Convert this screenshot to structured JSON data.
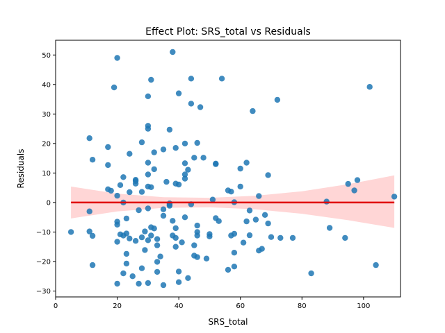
{
  "chart_data": {
    "type": "scatter",
    "title": "Effect Plot: SRS_total vs Residuals",
    "xlabel": "SRS_total",
    "ylabel": "Residuals",
    "xlim": [
      0,
      112
    ],
    "ylim": [
      -32,
      55
    ],
    "xticks": [
      0,
      20,
      40,
      60,
      80,
      100
    ],
    "yticks": [
      -30,
      -20,
      -10,
      0,
      10,
      20,
      30,
      40,
      50
    ],
    "grid": false,
    "colors": {
      "points": "#1f77b4",
      "line": "#e00000",
      "band": "#ff9999"
    },
    "regression_line": {
      "x": [
        5,
        110
      ],
      "y": [
        0,
        0
      ]
    },
    "confidence_band": {
      "x": [
        5,
        20,
        35,
        50,
        65,
        80,
        95,
        110
      ],
      "upper": [
        5.4,
        3.0,
        1.8,
        1.6,
        2.3,
        3.8,
        6.2,
        9.2
      ],
      "lower": [
        -5.4,
        -3.0,
        -1.8,
        -1.6,
        -2.3,
        -3.8,
        -6.0,
        -8.6
      ]
    },
    "points": [
      [
        5,
        -10
      ],
      [
        11,
        21.8
      ],
      [
        11,
        -3
      ],
      [
        11,
        -9.8
      ],
      [
        12,
        14.5
      ],
      [
        12,
        -11.3
      ],
      [
        12,
        -21.2
      ],
      [
        17,
        18.8
      ],
      [
        17,
        12.7
      ],
      [
        17,
        4.5
      ],
      [
        18,
        4
      ],
      [
        19,
        39
      ],
      [
        20,
        49
      ],
      [
        20,
        2.3
      ],
      [
        20,
        -6.5
      ],
      [
        20,
        -7.5
      ],
      [
        20,
        -13.3
      ],
      [
        20,
        -27.5
      ],
      [
        21,
        5.9
      ],
      [
        21,
        -10.8
      ],
      [
        22,
        8.6
      ],
      [
        22,
        0
      ],
      [
        22,
        -11.2
      ],
      [
        22,
        -24
      ],
      [
        23,
        -5.4
      ],
      [
        23,
        -10.5
      ],
      [
        23,
        -17.4
      ],
      [
        23,
        -20.7
      ],
      [
        24,
        16.5
      ],
      [
        24,
        3.5
      ],
      [
        24,
        -12.2
      ],
      [
        25,
        -25
      ],
      [
        26,
        7.7
      ],
      [
        26,
        7.3
      ],
      [
        26,
        6.4
      ],
      [
        26,
        -13
      ],
      [
        27,
        -2.6
      ],
      [
        27,
        -27.5
      ],
      [
        28,
        20.4
      ],
      [
        28,
        3.6
      ],
      [
        28,
        -11.8
      ],
      [
        28,
        -22.3
      ],
      [
        29,
        -9.8
      ],
      [
        29,
        -16.1
      ],
      [
        30,
        36
      ],
      [
        30,
        26
      ],
      [
        30,
        25
      ],
      [
        30,
        13.5
      ],
      [
        30,
        9.5
      ],
      [
        30,
        5.4
      ],
      [
        30,
        -2
      ],
      [
        30,
        -12.8
      ],
      [
        30,
        -27.3
      ],
      [
        31,
        41.6
      ],
      [
        31,
        5.2
      ],
      [
        31,
        -8.4
      ],
      [
        31,
        -11.2
      ],
      [
        32,
        17
      ],
      [
        32,
        11.3
      ],
      [
        32,
        -8.8
      ],
      [
        33,
        -12.4
      ],
      [
        33,
        -14.5
      ],
      [
        33,
        -20.1
      ],
      [
        33,
        -23.5
      ],
      [
        34,
        -18.3
      ],
      [
        35,
        18
      ],
      [
        35,
        -2.3
      ],
      [
        35,
        -4.5
      ],
      [
        35,
        -28
      ],
      [
        36,
        7
      ],
      [
        37,
        24.7
      ],
      [
        37,
        -0.3
      ],
      [
        37,
        -0.7
      ],
      [
        37,
        -1.1
      ],
      [
        38,
        51
      ],
      [
        38,
        -6.2
      ],
      [
        38,
        -11.2
      ],
      [
        39,
        18.5
      ],
      [
        39,
        6.4
      ],
      [
        39,
        -8.7
      ],
      [
        39,
        -12
      ],
      [
        39,
        -15
      ],
      [
        40,
        37
      ],
      [
        40,
        6.1
      ],
      [
        40,
        -23.4
      ],
      [
        40,
        -27
      ],
      [
        41,
        -13.5
      ],
      [
        42,
        20
      ],
      [
        42,
        13.3
      ],
      [
        42,
        9.5
      ],
      [
        42,
        -5
      ],
      [
        42,
        8.1
      ],
      [
        43,
        11.1
      ],
      [
        43,
        -25.6
      ],
      [
        44,
        42
      ],
      [
        44,
        33.5
      ],
      [
        44,
        -0.6
      ],
      [
        45,
        15.2
      ],
      [
        45,
        -14.5
      ],
      [
        45,
        -18
      ],
      [
        46,
        20.2
      ],
      [
        46,
        -7.8
      ],
      [
        46,
        -10
      ],
      [
        46,
        -11.2
      ],
      [
        46,
        -18.5
      ],
      [
        47,
        32.3
      ],
      [
        48,
        15.2
      ],
      [
        49,
        -19
      ],
      [
        50,
        -10.7
      ],
      [
        50,
        -11.5
      ],
      [
        51,
        1
      ],
      [
        52,
        13.2
      ],
      [
        52,
        13
      ],
      [
        52,
        -5.3
      ],
      [
        53,
        -6.3
      ],
      [
        54,
        42
      ],
      [
        56,
        4.1
      ],
      [
        56,
        -22.8
      ],
      [
        57,
        3.7
      ],
      [
        57,
        -11.2
      ],
      [
        58,
        0.1
      ],
      [
        58,
        -10.6
      ],
      [
        58,
        -17
      ],
      [
        58,
        -21.7
      ],
      [
        60,
        11.5
      ],
      [
        60,
        5.4
      ],
      [
        61,
        -13.6
      ],
      [
        62,
        13.5
      ],
      [
        62,
        -6.4
      ],
      [
        63,
        -2.7
      ],
      [
        63,
        -11.1
      ],
      [
        64,
        31
      ],
      [
        65,
        -5.8
      ],
      [
        66,
        2.2
      ],
      [
        66,
        -16.3
      ],
      [
        67,
        -15.7
      ],
      [
        68,
        -4.2
      ],
      [
        69,
        9.3
      ],
      [
        69,
        -7.1
      ],
      [
        70,
        -11.7
      ],
      [
        72,
        34.8
      ],
      [
        73,
        -12
      ],
      [
        77,
        -12
      ],
      [
        83,
        -24
      ],
      [
        88,
        0.3
      ],
      [
        89,
        -8.6
      ],
      [
        94,
        -12
      ],
      [
        95,
        6.3
      ],
      [
        97,
        4.1
      ],
      [
        98,
        7.6
      ],
      [
        102,
        39.2
      ],
      [
        104,
        -21.2
      ],
      [
        110,
        2
      ]
    ]
  }
}
